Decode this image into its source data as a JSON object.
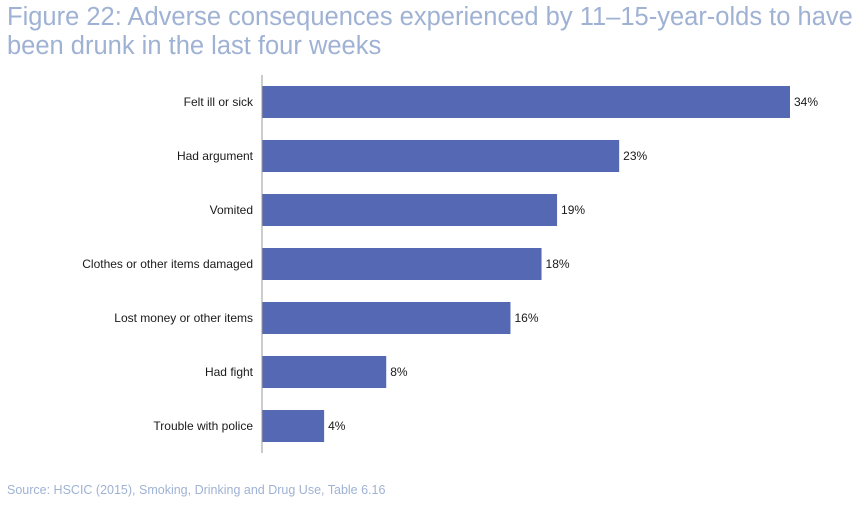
{
  "header": {
    "title": "Figure 22: Adverse consequences experienced by 11–15-year-olds to have been drunk in the last four weeks"
  },
  "footer": {
    "source": "Source: HSCIC (2015), Smoking, Drinking and Drug Use, Table 6.16"
  },
  "chart_data": {
    "type": "bar",
    "orientation": "horizontal",
    "categories": [
      "Felt ill or sick",
      "Had argument",
      "Vomited",
      "Clothes or other items damaged",
      "Lost money or other items",
      "Had fight",
      "Trouble with police"
    ],
    "values": [
      34,
      23,
      19,
      18,
      16,
      8,
      4
    ],
    "value_labels": [
      "34%",
      "23%",
      "19%",
      "18%",
      "16%",
      "8%",
      "4%"
    ],
    "unit": "%",
    "xlim": [
      0,
      34
    ],
    "grid": false,
    "legend": "none",
    "bar_color": "#5468b4",
    "axis_color": "#9a9a9a"
  }
}
